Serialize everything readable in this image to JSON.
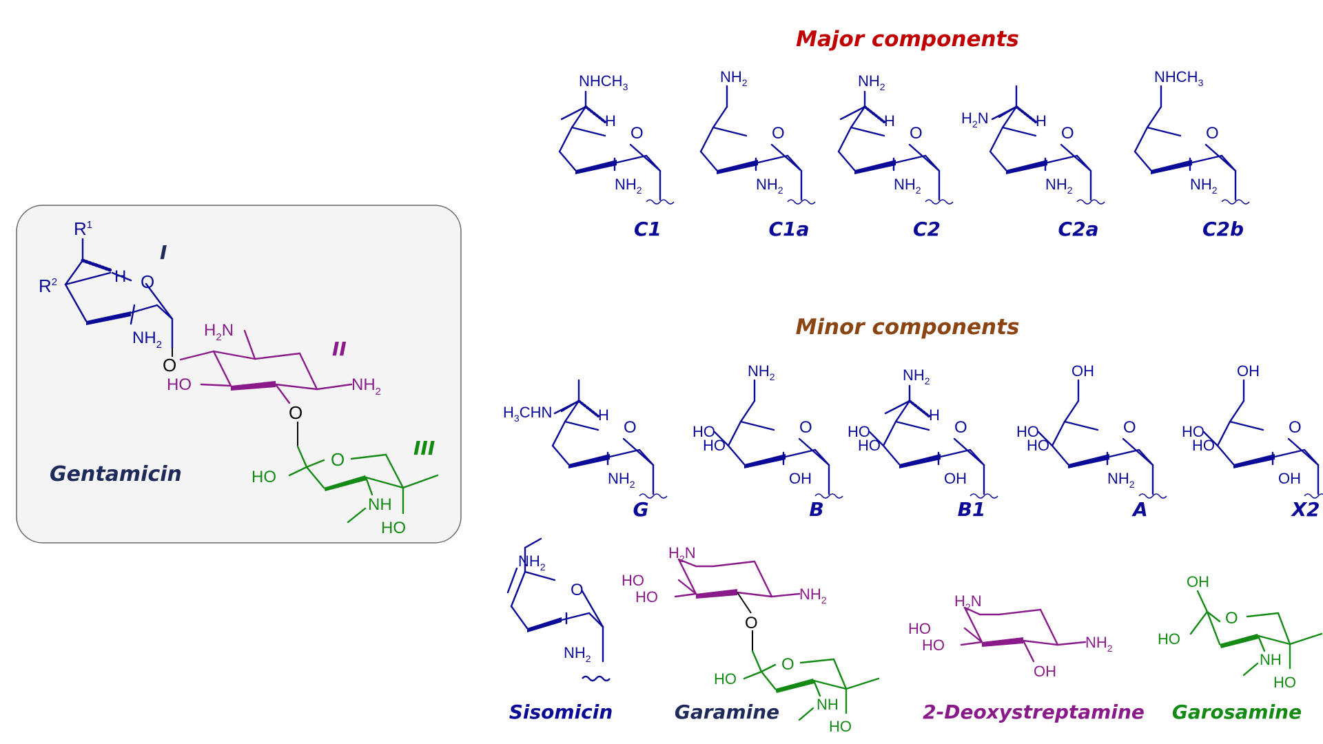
{
  "colors": {
    "ring_I": "#0a0a96",
    "ring_II": "#8a1a8a",
    "ring_III": "#138a13",
    "major_header": "#c00000",
    "minor_header": "#8b4513",
    "dark_label": "#1e2a5a",
    "box_border": "#666666",
    "box_fill": "#f4f4f4",
    "link": "#000000"
  },
  "headers": {
    "major": "Major components",
    "minor": "Minor components"
  },
  "gentamicin_panel": {
    "name": "Gentamicin",
    "ring_labels": [
      "I",
      "II",
      "III"
    ],
    "r1": "R",
    "r1_sup": "1",
    "r2": "R",
    "r2_sup": "2",
    "ring_I": {
      "H": "H",
      "O": "O",
      "NH2": "NH",
      "NH2_sub": "2"
    },
    "link_O1": "O",
    "ring_II": {
      "H2N": "H",
      "H2N_sub": "2",
      "H2N_N": "N",
      "HO": "HO",
      "NH2": "NH",
      "NH2_sub": "2"
    },
    "link_O2": "O",
    "ring_III": {
      "O": "O",
      "HO_left": "HO",
      "NH": "NH",
      "HO_bottom": "HO"
    }
  },
  "major_components": [
    {
      "label": "C1",
      "top": "NHCH",
      "top_sub": "3",
      "H": "H",
      "O": "O",
      "NH2": "NH",
      "NH2_sub": "2"
    },
    {
      "label": "C1a",
      "top": "NH",
      "top_sub": "2",
      "O": "O",
      "NH2": "NH",
      "NH2_sub": "2"
    },
    {
      "label": "C2",
      "top": "NH",
      "top_sub": "2",
      "H": "H",
      "O": "O",
      "NH2": "NH",
      "NH2_sub": "2"
    },
    {
      "label": "C2a",
      "left": "H",
      "left_sub": "2",
      "left_N": "N",
      "H": "H",
      "O": "O",
      "NH2": "NH",
      "NH2_sub": "2"
    },
    {
      "label": "C2b",
      "top": "NHCH",
      "top_sub": "3",
      "O": "O",
      "NH2": "NH",
      "NH2_sub": "2"
    }
  ],
  "minor_components": [
    {
      "label": "G",
      "left": "H",
      "left_sub": "3",
      "left_rest": "CHN",
      "H": "H",
      "O": "O",
      "NH2": "NH",
      "NH2_sub": "2"
    },
    {
      "label": "B",
      "top": "NH",
      "top_sub": "2",
      "HO1": "HO",
      "HO2": "HO",
      "O": "O",
      "OH": "OH"
    },
    {
      "label": "B1",
      "top": "NH",
      "top_sub": "2",
      "H": "H",
      "HO1": "HO",
      "HO2": "HO",
      "O": "O",
      "OH": "OH"
    },
    {
      "label": "A",
      "top": "OH",
      "HO1": "HO",
      "HO2": "HO",
      "O": "O",
      "NH2": "NH",
      "NH2_sub": "2"
    },
    {
      "label": "X2",
      "top": "OH",
      "HO1": "HO",
      "HO2": "HO",
      "O": "O",
      "OH": "OH"
    }
  ],
  "bottom_structures": {
    "sisomicin": {
      "label": "Sisomicin",
      "top": "NH",
      "top_sub": "2",
      "O": "O",
      "NH2": "NH",
      "NH2_sub": "2"
    },
    "garamine": {
      "label": "Garamine",
      "H2N": "H",
      "H2N_sub": "2",
      "H2N_N": "N",
      "HO1": "HO",
      "HO2": "HO",
      "NH2": "NH",
      "NH2_sub": "2",
      "O_link": "O",
      "O": "O",
      "HO3": "HO",
      "NH": "NH",
      "HO4": "HO"
    },
    "deoxystreptamine": {
      "label": "2-Deoxystreptamine",
      "H2N": "H",
      "H2N_sub": "2",
      "H2N_N": "N",
      "HO1": "HO",
      "HO2": "HO",
      "NH2": "NH",
      "NH2_sub": "2",
      "OH": "OH"
    },
    "garosamine": {
      "label": "Garosamine",
      "OH": "OH",
      "O": "O",
      "HO1": "HO",
      "NH": "NH",
      "HO2": "HO"
    }
  }
}
